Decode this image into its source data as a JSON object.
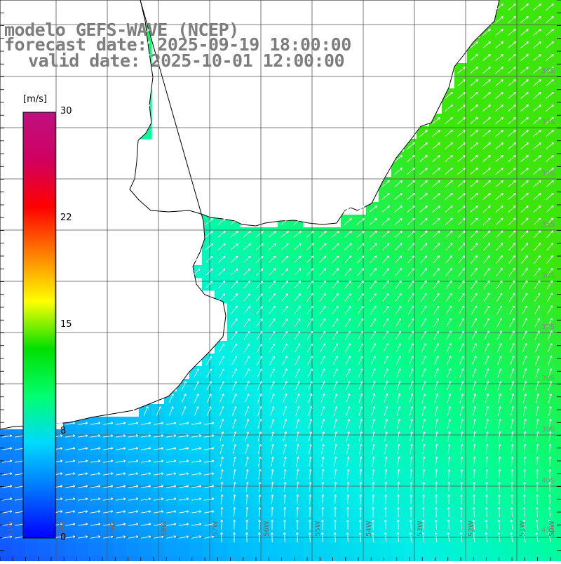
{
  "title": {
    "line1": "modelo GEFS-WAVE (NCEP)",
    "line2": "forecast date: 2025-09-19 18:00:00",
    "line3": "valid date: 2025-10-01 12:00:00"
  },
  "colorbar": {
    "unit": "[m/s]",
    "ticks": [
      "30",
      "22",
      "15",
      "8",
      "0"
    ],
    "colors": [
      "#0000ff",
      "#0070ff",
      "#00d8ff",
      "#00ff70",
      "#00e000",
      "#ffff00",
      "#ff8000",
      "#ff0000",
      "#d00060",
      "#c01080"
    ]
  },
  "map": {
    "lon_labels": [
      "61W",
      "60W",
      "59W",
      "58W",
      "57W",
      "56W",
      "55W",
      "54W",
      "53W",
      "52W",
      "51W",
      "50W"
    ],
    "lat_labels": [
      "32S",
      "33S",
      "34S",
      "35S",
      "36S",
      "37S",
      "38S",
      "39S",
      "40S",
      "41S"
    ],
    "colors": {
      "land": "#ffffff",
      "coast": "#000000",
      "grid": "#555555",
      "arrow": "#ffffff"
    }
  }
}
